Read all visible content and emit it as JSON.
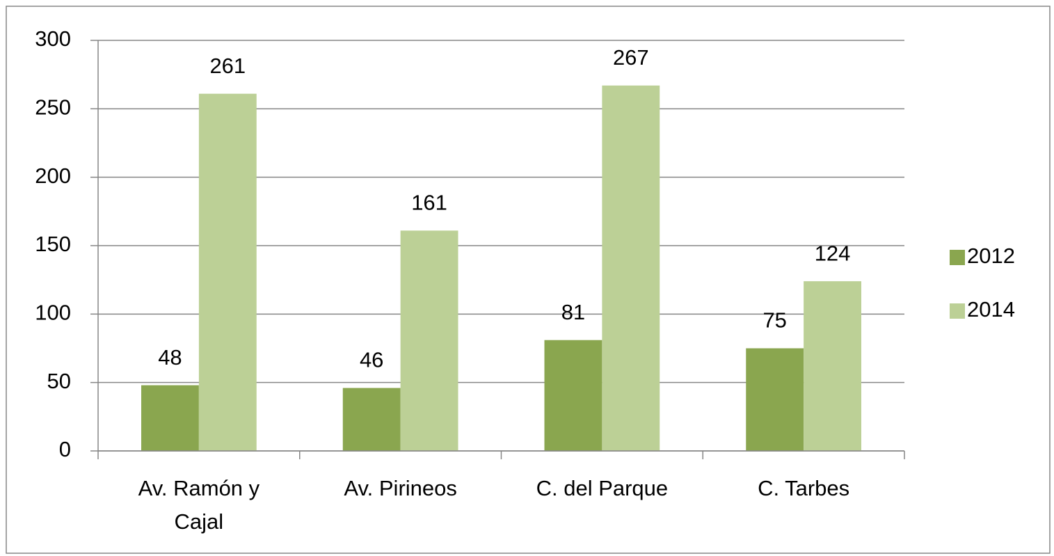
{
  "chart_data": {
    "type": "bar",
    "categories": [
      "Av. Ramón y Cajal",
      "Av. Pirineos",
      "C. del Parque",
      "C. Tarbes"
    ],
    "series": [
      {
        "name": "2012",
        "color": "#8aa64f",
        "values": [
          48,
          46,
          81,
          75
        ]
      },
      {
        "name": "2014",
        "color": "#bcd096",
        "values": [
          261,
          161,
          267,
          124
        ]
      }
    ],
    "ylim": [
      0,
      300
    ],
    "yticks": [
      0,
      50,
      100,
      150,
      200,
      250,
      300
    ],
    "grid": true,
    "legend": "right"
  }
}
